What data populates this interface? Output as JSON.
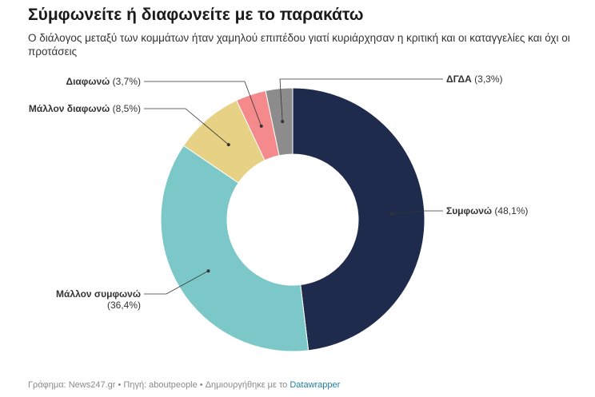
{
  "header": {
    "title": "Σύμφωνείτε ή διαφωνείτε με το παρακάτω",
    "subtitle": "Ο διάλογος μεταξύ των κομμάτων ήταν χαμηλού επιπέδου γιατί κυριάρχησαν η κριτική και οι καταγγελίες και όχι οι προτάσεις"
  },
  "footer": {
    "credit": "Γράφημα: News247.gr • Πηγή: aboutpeople • Δημιουργήθηκε με το ",
    "tool": "Datawrapper"
  },
  "chart_data": {
    "type": "pie",
    "variant": "donut",
    "title": "Σύμφωνείτε ή διαφωνείτε με το παρακάτω",
    "subtitle": "Ο διάλογος μεταξύ των κομμάτων ήταν χαμηλού επιπέδου γιατί κυριάρχησαν η κριτική και οι καταγγελίες και όχι οι προτάσεις",
    "slices": [
      {
        "label": "Συμφωνώ",
        "value": 48.1,
        "display": "(48,1%)",
        "color": "#1f2b4d"
      },
      {
        "label": "Μάλλον συμφωνώ",
        "value": 36.4,
        "display": "(36,4%)",
        "color": "#7cc8c8"
      },
      {
        "label": "Μάλλον διαφωνώ",
        "value": 8.5,
        "display": "(8,5%)",
        "color": "#e6d184"
      },
      {
        "label": "Διαφωνώ",
        "value": 3.7,
        "display": "(3,7%)",
        "color": "#f58a8c"
      },
      {
        "label": "ΔΓΔΑ",
        "value": 3.3,
        "display": "(3,3%)",
        "color": "#8c8c8c"
      }
    ]
  }
}
